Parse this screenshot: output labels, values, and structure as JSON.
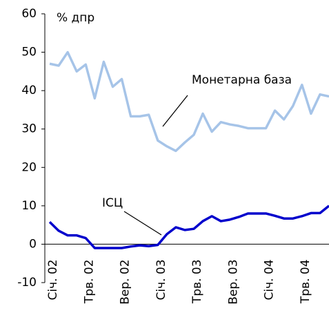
{
  "chart_data": {
    "type": "line",
    "y_axis_label": "% дпр",
    "annotations": [
      "Монетарна база",
      "ІСЦ"
    ],
    "categories": [
      "Січ. 02",
      null,
      null,
      null,
      "Трв. 02",
      null,
      null,
      null,
      "Вер. 02",
      null,
      null,
      null,
      "Січ. 03",
      null,
      null,
      null,
      "Трв. 03",
      null,
      null,
      null,
      "Вер. 03",
      null,
      null,
      null,
      "Січ. 04",
      null,
      null,
      null,
      "Трв. 04",
      null,
      null,
      null
    ],
    "series": [
      {
        "name": "Монетарна база",
        "color": "#a6c4e8",
        "values": [
          47,
          46.5,
          50,
          45,
          46.8,
          38,
          47.5,
          41,
          43,
          33.3,
          33.3,
          33.7,
          27,
          25.5,
          24.3,
          26.5,
          28.5,
          34,
          29.3,
          31.8,
          31.2,
          30.8,
          30.2,
          30.2,
          30.2,
          34.8,
          32.5,
          36,
          41.5,
          34,
          39,
          38.5
        ]
      },
      {
        "name": "ІСЦ",
        "color": "#0000cc",
        "values": [
          5.8,
          3.5,
          2.3,
          2.3,
          1.6,
          -1,
          -1,
          -1,
          -1,
          -0.6,
          -0.3,
          -0.5,
          -0.2,
          2.6,
          4.4,
          3.7,
          4.0,
          6.0,
          7.3,
          6.0,
          6.4,
          7.1,
          8.0,
          8.0,
          8.0,
          7.4,
          6.7,
          6.7,
          7.3,
          8.1,
          8.1,
          10.0
        ]
      }
    ],
    "ylim": [
      -10,
      60
    ],
    "yticks": [
      -10,
      0,
      10,
      20,
      30,
      40,
      50,
      60
    ]
  }
}
